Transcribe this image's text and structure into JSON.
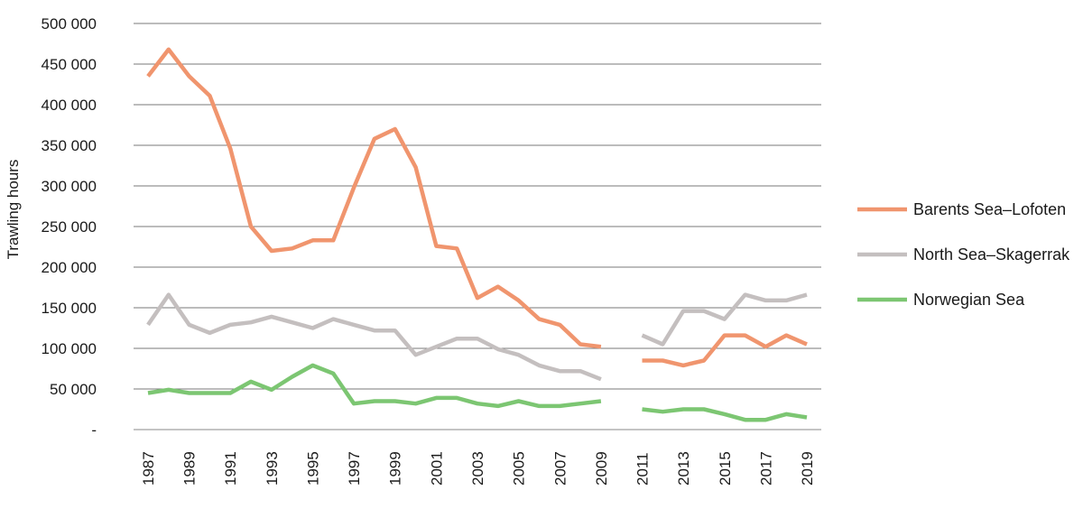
{
  "chart_data": {
    "type": "line",
    "title": "",
    "xlabel": "",
    "ylabel": "Trawling hours",
    "x": [
      1987,
      1988,
      1989,
      1990,
      1991,
      1992,
      1993,
      1994,
      1995,
      1996,
      1997,
      1998,
      1999,
      2000,
      2001,
      2002,
      2003,
      2004,
      2005,
      2006,
      2007,
      2008,
      2009,
      2010,
      2011,
      2012,
      2013,
      2014,
      2015,
      2016,
      2017,
      2018,
      2019
    ],
    "x_tick_labels": [
      "1987",
      "1989",
      "1991",
      "1993",
      "1995",
      "1997",
      "1999",
      "2001",
      "2003",
      "2005",
      "2007",
      "2009",
      "2011",
      "2013",
      "2015",
      "2017",
      "2019"
    ],
    "ylim": [
      0,
      500000
    ],
    "y_tick_labels": [
      "-",
      "50 000",
      "100 000",
      "150 000",
      "200 000",
      "250 000",
      "300 000",
      "350 000",
      "400 000",
      "450 000",
      "500 000"
    ],
    "grid": "horizontal",
    "legend_position": "right",
    "series": [
      {
        "name": "Barents Sea–Lofoten",
        "color": "#f0956e",
        "values": [
          435000,
          468000,
          435000,
          411000,
          346000,
          250000,
          220000,
          223000,
          233000,
          233000,
          298000,
          358000,
          370000,
          323000,
          226000,
          223000,
          162000,
          176000,
          159000,
          136000,
          129000,
          105000,
          102000,
          null,
          85000,
          85000,
          79000,
          85000,
          116000,
          116000,
          102000,
          116000,
          105000
        ]
      },
      {
        "name": "North Sea–Skagerrak",
        "color": "#c4bfbf",
        "values": [
          129000,
          166000,
          129000,
          119000,
          129000,
          132000,
          139000,
          132000,
          125000,
          136000,
          129000,
          122000,
          122000,
          92000,
          102000,
          112000,
          112000,
          99000,
          92000,
          79000,
          72000,
          72000,
          62000,
          null,
          116000,
          105000,
          146000,
          146000,
          136000,
          166000,
          159000,
          159000,
          166000
        ]
      },
      {
        "name": "Norwegian Sea",
        "color": "#7cc672",
        "values": [
          45000,
          49000,
          45000,
          45000,
          45000,
          59000,
          49000,
          65000,
          79000,
          69000,
          32000,
          35000,
          35000,
          32000,
          39000,
          39000,
          32000,
          29000,
          35000,
          29000,
          29000,
          32000,
          35000,
          null,
          25000,
          22000,
          25000,
          25000,
          19000,
          12000,
          12000,
          19000,
          15000
        ]
      }
    ]
  }
}
